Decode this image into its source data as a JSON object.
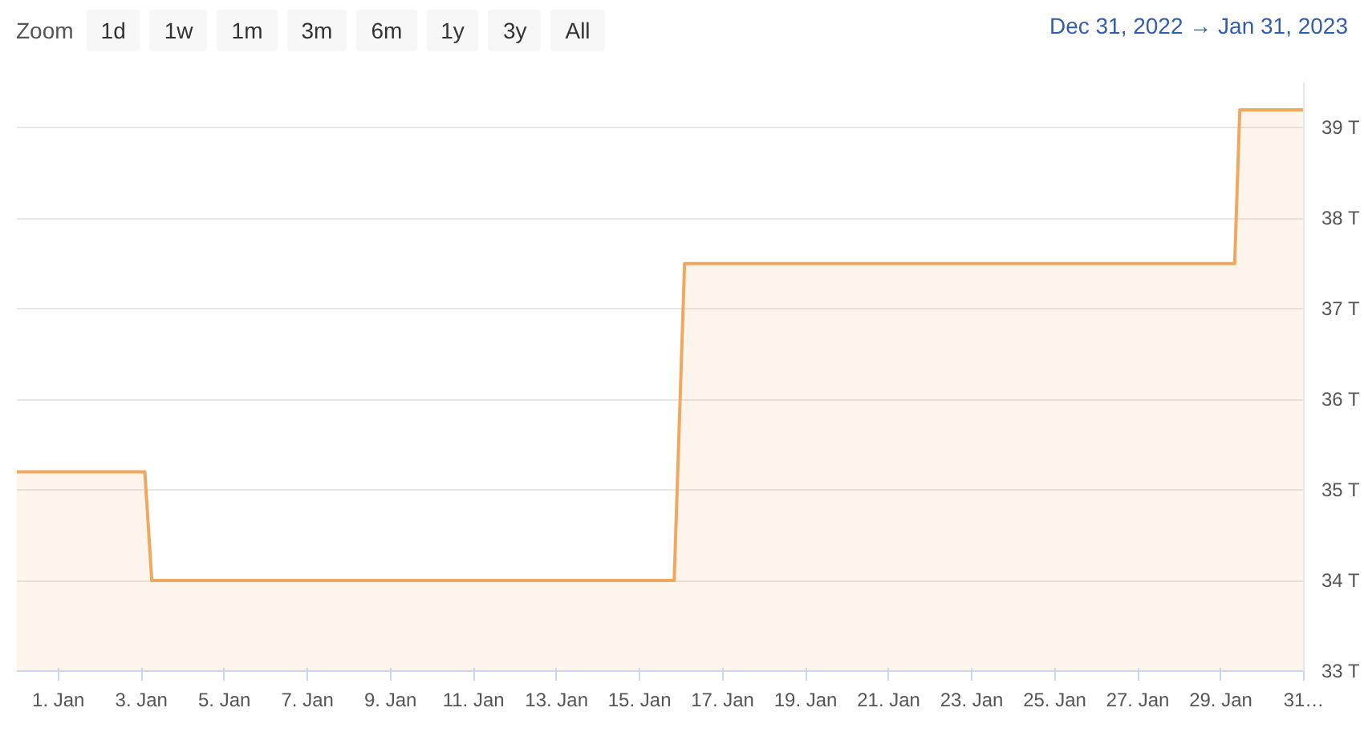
{
  "chart_data": {
    "type": "area",
    "x": [
      "2022-12-31T00:00",
      "2023-01-03T02:00",
      "2023-01-03T06:00",
      "2023-01-15T20:00",
      "2023-01-16T02:00",
      "2023-01-29T08:00",
      "2023-01-29T11:00",
      "2023-01-31T00:00"
    ],
    "series": [
      {
        "color": "#f0a860",
        "values": [
          35.2,
          35.2,
          34.0,
          34.0,
          37.5,
          37.5,
          39.2,
          39.2
        ]
      }
    ],
    "xlim": [
      "2022-12-31",
      "2023-01-31"
    ],
    "xticks": [
      {
        "value": "2023-01-01",
        "label": "1. Jan"
      },
      {
        "value": "2023-01-03",
        "label": "3. Jan"
      },
      {
        "value": "2023-01-05",
        "label": "5. Jan"
      },
      {
        "value": "2023-01-07",
        "label": "7. Jan"
      },
      {
        "value": "2023-01-09",
        "label": "9. Jan"
      },
      {
        "value": "2023-01-11",
        "label": "11. Jan"
      },
      {
        "value": "2023-01-13",
        "label": "13. Jan"
      },
      {
        "value": "2023-01-15",
        "label": "15. Jan"
      },
      {
        "value": "2023-01-17",
        "label": "17. Jan"
      },
      {
        "value": "2023-01-19",
        "label": "19. Jan"
      },
      {
        "value": "2023-01-21",
        "label": "21. Jan"
      },
      {
        "value": "2023-01-23",
        "label": "23. Jan"
      },
      {
        "value": "2023-01-25",
        "label": "25. Jan"
      },
      {
        "value": "2023-01-27",
        "label": "27. Jan"
      },
      {
        "value": "2023-01-29",
        "label": "29. Jan"
      },
      {
        "value": "2023-01-31",
        "label": "31…"
      }
    ],
    "ylim": [
      33,
      39.5
    ],
    "yticks": [
      {
        "value": 33,
        "label": "33 T"
      },
      {
        "value": 34,
        "label": "34 T"
      },
      {
        "value": 35,
        "label": "35 T"
      },
      {
        "value": 36,
        "label": "36 T"
      },
      {
        "value": 37,
        "label": "37 T"
      },
      {
        "value": 38,
        "label": "38 T"
      },
      {
        "value": 39,
        "label": "39 T"
      }
    ],
    "grid": "y",
    "marker": "none",
    "annotations": [
      "Zoom",
      "1d",
      "1w",
      "1m",
      "3m",
      "6m",
      "1y",
      "3y",
      "All",
      "Dec 31, 2022 → Jan 31, 2023"
    ]
  }
}
